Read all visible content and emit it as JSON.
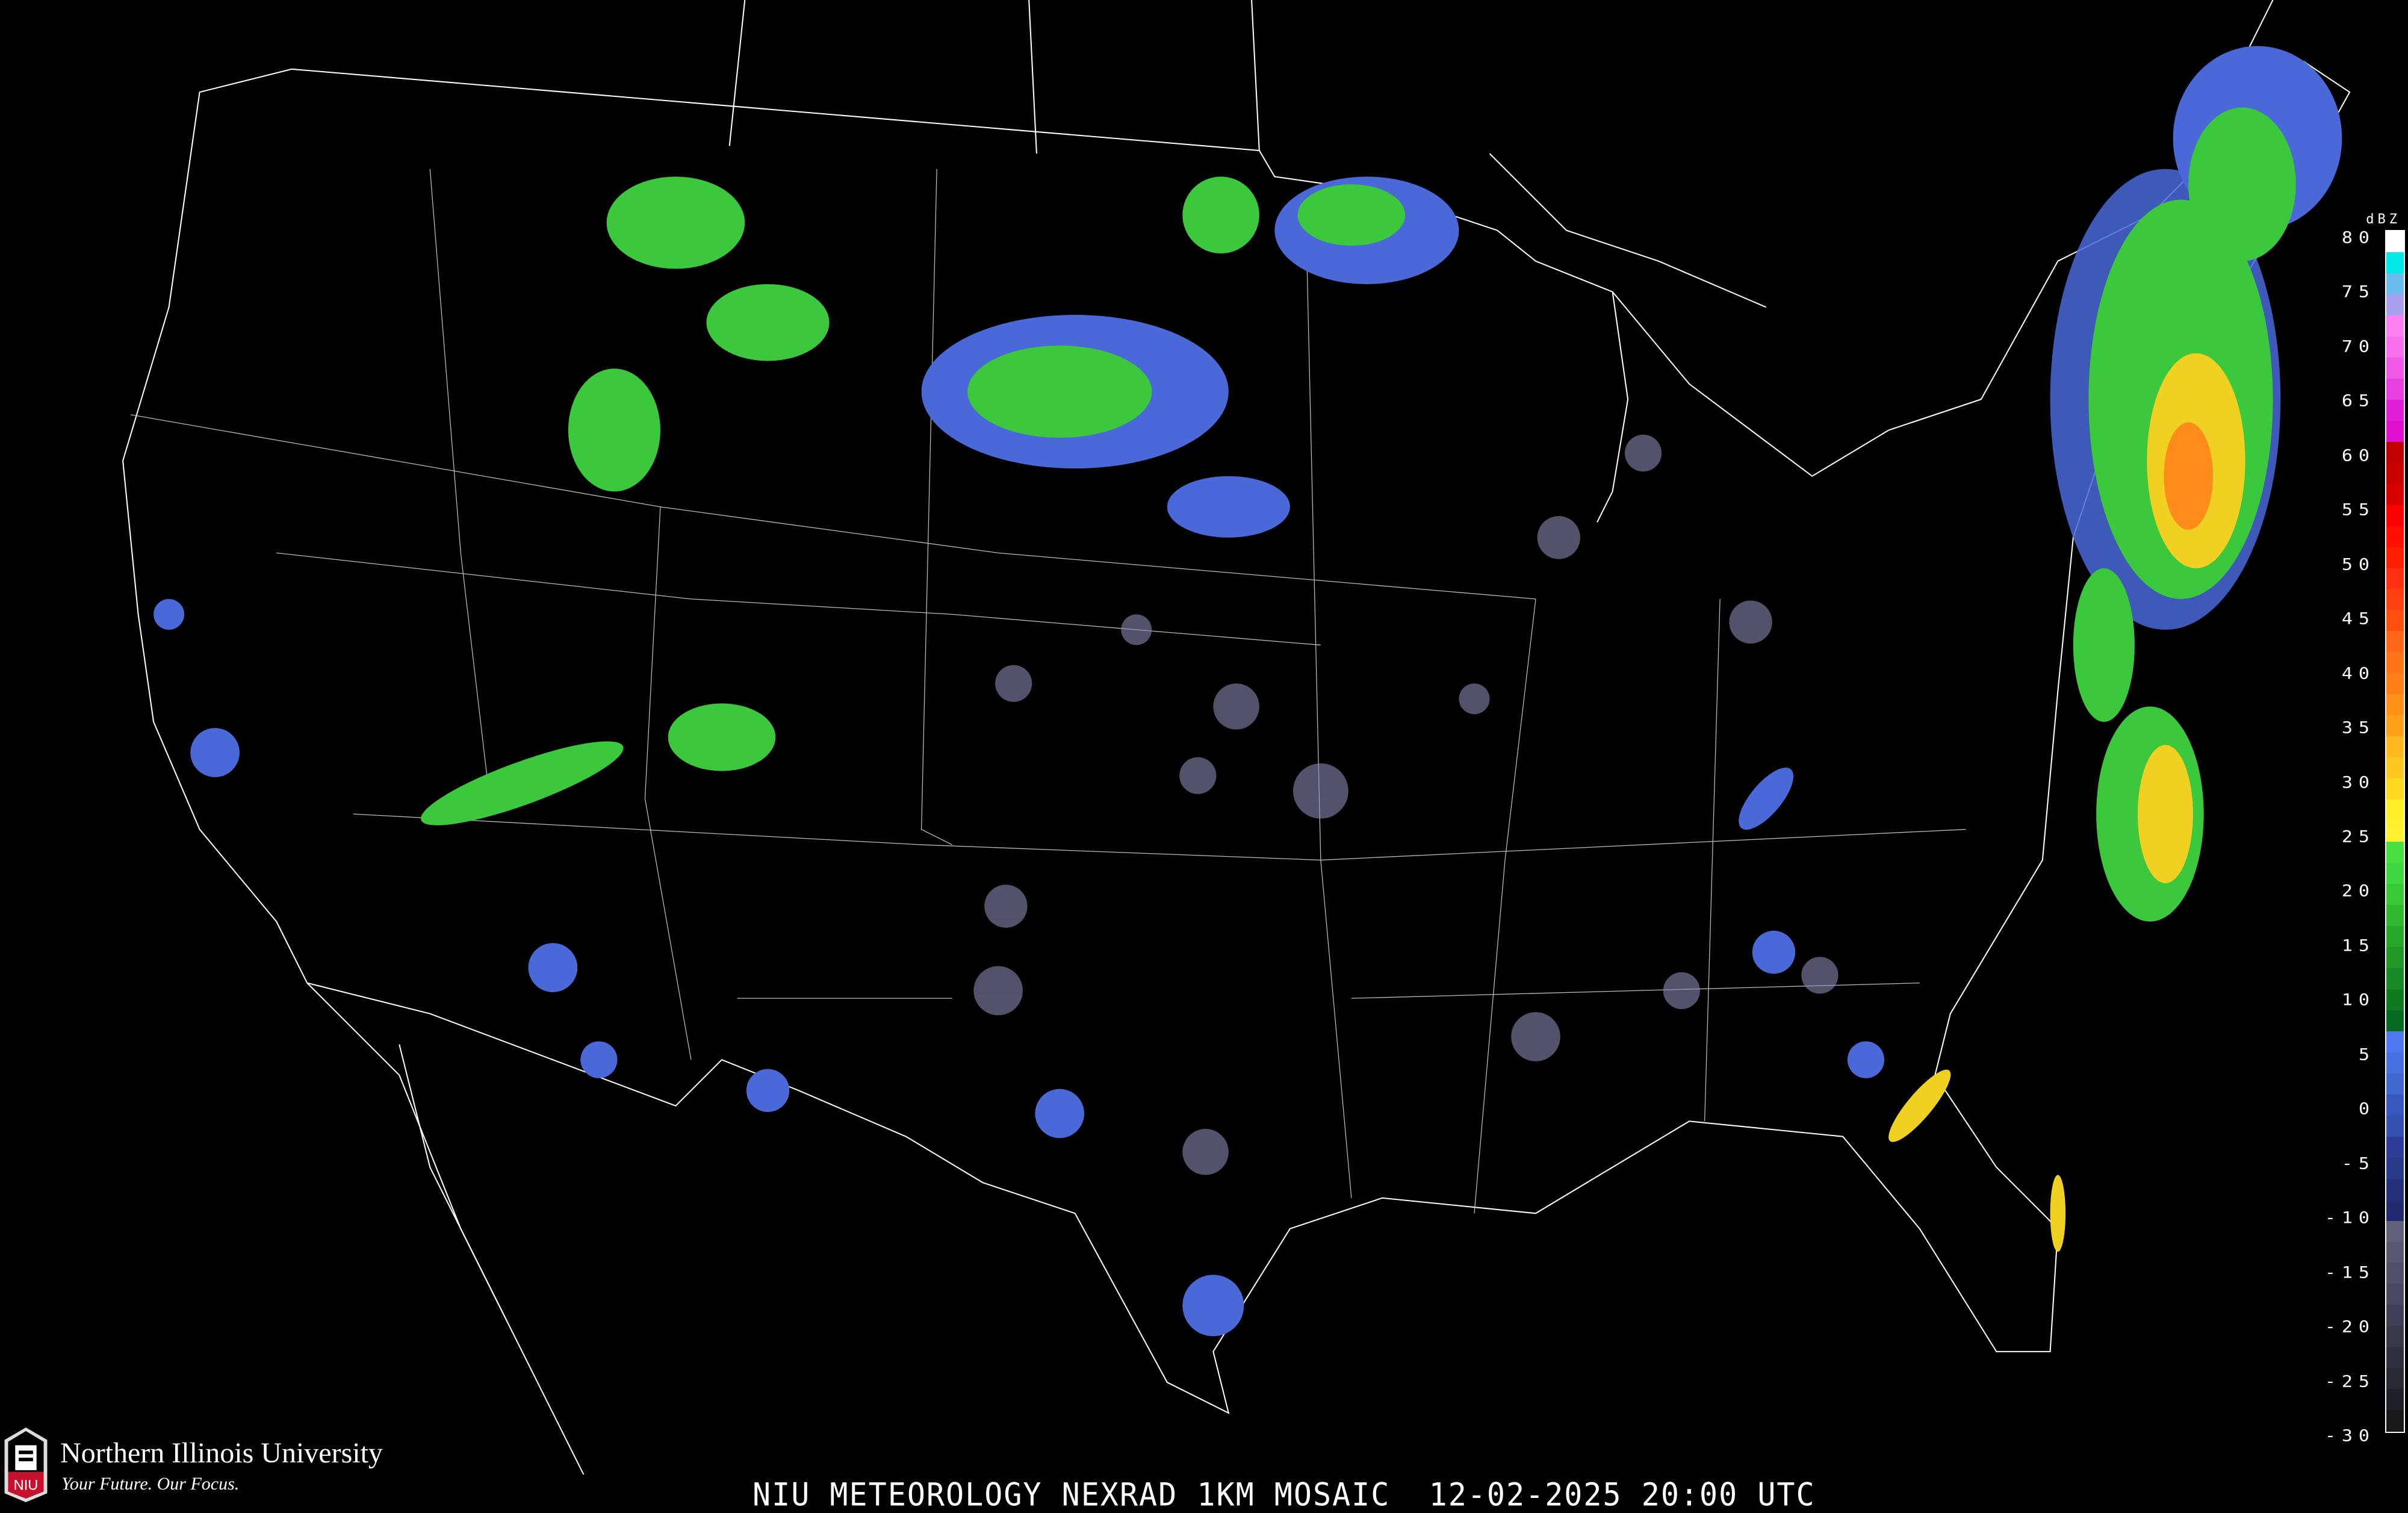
{
  "map": {
    "title": "NIU METEOROLOGY NEXRAD 1KM MOSAIC  12-02-2025 20:00 UTC",
    "product": "NEXRAD 1KM MOSAIC",
    "date": "12-02-2025",
    "time": "20:00 UTC",
    "colors": {
      "background": "#000000",
      "boundaries": "#ffffff",
      "highways": "#8a4a20",
      "light_echo": "#4a68d8",
      "moderate_echo": "#3cc83c",
      "heavy_echo": "#f0d020",
      "intense_echo": "#ff8c1a"
    }
  },
  "legend": {
    "unit": "dBZ",
    "ticks": [
      "80",
      "75",
      "70",
      "65",
      "60",
      "55",
      "50",
      "45",
      "40",
      "35",
      "30",
      "25",
      "20",
      "15",
      "10",
      "5",
      "0",
      "-5",
      "-10",
      "-15",
      "-20",
      "-25",
      "-30"
    ],
    "colors": [
      "#ffffff",
      "#00e8e8",
      "#6cbcf0",
      "#a8a0ec",
      "#ff80f0",
      "#f870ec",
      "#f058e8",
      "#e840e0",
      "#e020d8",
      "#e010d0",
      "#c00000",
      "#c80000",
      "#d80000",
      "#ff0000",
      "#ff1000",
      "#ff2000",
      "#ff3010",
      "#ff4010",
      "#ff5010",
      "#ff6818",
      "#ff7418",
      "#ff8018",
      "#ff9018",
      "#ffa018",
      "#ffb820",
      "#ffc820",
      "#ffd820",
      "#ffee28",
      "#fff030",
      "#48e040",
      "#40d840",
      "#38c838",
      "#30b830",
      "#28a828",
      "#209828",
      "#1a8a28",
      "#107a20",
      "#086a20",
      "#5078f0",
      "#4870e0",
      "#4068d0",
      "#3858c0",
      "#3450b0",
      "#303c98",
      "#283a88",
      "#24307a",
      "#222a70",
      "#606078",
      "#585870",
      "#505068",
      "#484860",
      "#404058",
      "#383848",
      "#303040",
      "#282830",
      "#202028",
      "#181818"
    ]
  },
  "logo": {
    "name": "Northern Illinois University",
    "tagline": "Your Future. Our Focus.",
    "mark": "NIU"
  }
}
